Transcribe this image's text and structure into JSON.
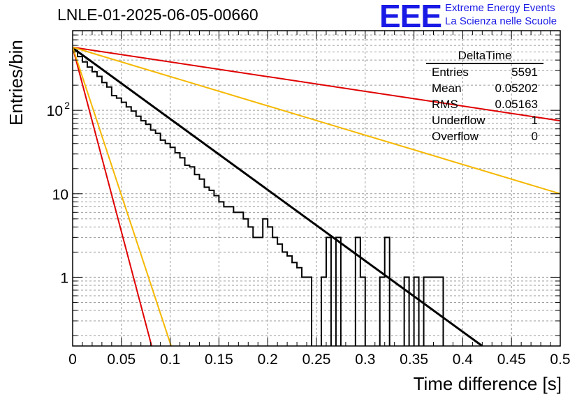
{
  "header": {
    "title": "LNLE-01-2025-06-05-00660",
    "logo_text": "EEE",
    "logo_line1": "Extreme Energy Events",
    "logo_line2": "La Scienza nelle Scuole"
  },
  "stats_box": {
    "name": "DeltaTime",
    "rows": [
      {
        "label": "Entries",
        "value": "5591"
      },
      {
        "label": "Mean",
        "value": "0.05202"
      },
      {
        "label": "RMS",
        "value": "0.05163"
      },
      {
        "label": "Underflow",
        "value": "1"
      },
      {
        "label": "Overflow",
        "value": "0"
      }
    ]
  },
  "colors": {
    "histogram": "#000000",
    "fit": "#000000",
    "red": "#e00000",
    "yellow": "#f5b800",
    "logo": "#1a1ae6"
  },
  "chart_data": {
    "type": "line",
    "title": "LNLE-01-2025-06-05-00660",
    "xlabel": "Time difference [s]",
    "ylabel": "Entries/bin",
    "xlim": [
      0,
      0.5
    ],
    "ylim": [
      0.15,
      900
    ],
    "yscale": "log",
    "grid": true,
    "x_ticks": [
      "0",
      "0.05",
      "0.1",
      "0.15",
      "0.2",
      "0.25",
      "0.3",
      "0.35",
      "0.4",
      "0.45",
      "0.5"
    ],
    "y_ticks": [
      "1",
      "10",
      "10^2"
    ],
    "histogram": {
      "bin_width": 0.005,
      "counts": [
        520,
        440,
        380,
        330,
        290,
        255,
        215,
        190,
        150,
        140,
        125,
        110,
        98,
        85,
        75,
        68,
        58,
        53,
        44,
        40,
        36,
        31,
        27,
        22,
        21,
        17,
        15,
        12,
        11,
        9.5,
        8,
        7,
        7,
        6,
        6,
        5,
        4,
        3,
        3,
        5,
        4,
        3,
        2.5,
        2,
        1.8,
        1.5,
        1.3,
        1,
        1,
        0,
        0,
        1,
        3,
        0,
        3,
        0,
        0,
        0,
        3,
        1,
        0,
        0,
        0,
        1,
        3,
        0,
        0,
        0,
        1,
        0,
        1,
        0,
        1,
        1,
        1,
        1,
        0,
        0,
        0,
        0,
        0,
        0,
        0,
        0,
        0,
        0,
        0,
        0,
        0,
        0,
        0,
        0,
        0,
        0,
        0,
        0,
        0,
        0,
        0,
        0
      ]
    },
    "series": [
      {
        "color": "#000000",
        "points": [
          [
            0,
            560
          ],
          [
            0.42,
            0.15
          ]
        ]
      },
      {
        "color": "#e00000",
        "points": [
          [
            0,
            570
          ],
          [
            0.5,
            75
          ]
        ]
      },
      {
        "color": "#f5b800",
        "points": [
          [
            0,
            570
          ],
          [
            0.5,
            10
          ]
        ]
      },
      {
        "color": "#e00000",
        "points": [
          [
            0,
            570
          ],
          [
            0.081,
            0.15
          ]
        ]
      },
      {
        "color": "#f5b800",
        "points": [
          [
            0,
            570
          ],
          [
            0.101,
            0.15
          ]
        ]
      }
    ]
  },
  "axis_titles": {
    "x": "Time difference [s]",
    "y": "Entries/bin"
  }
}
